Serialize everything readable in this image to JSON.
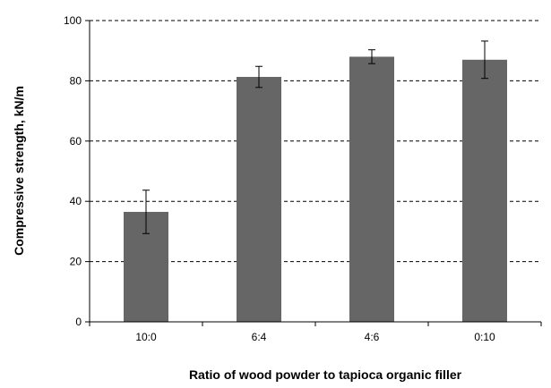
{
  "chart_data": {
    "type": "bar",
    "title": "",
    "xlabel": "Ratio of wood powder to tapioca organic filler",
    "ylabel": "Compressive strength, kN/m",
    "categories": [
      "10:0",
      "6:4",
      "4:6",
      "0:10"
    ],
    "values": [
      36.5,
      81.3,
      88.0,
      87.0
    ],
    "error": [
      7.2,
      3.5,
      2.3,
      6.2
    ],
    "ylim": [
      0,
      100
    ],
    "yticks": [
      0,
      20,
      40,
      60,
      80,
      100
    ],
    "grid": "horizontal-dashed",
    "legend": "none",
    "bar_color": "#666666",
    "grid_color": "#000000"
  }
}
